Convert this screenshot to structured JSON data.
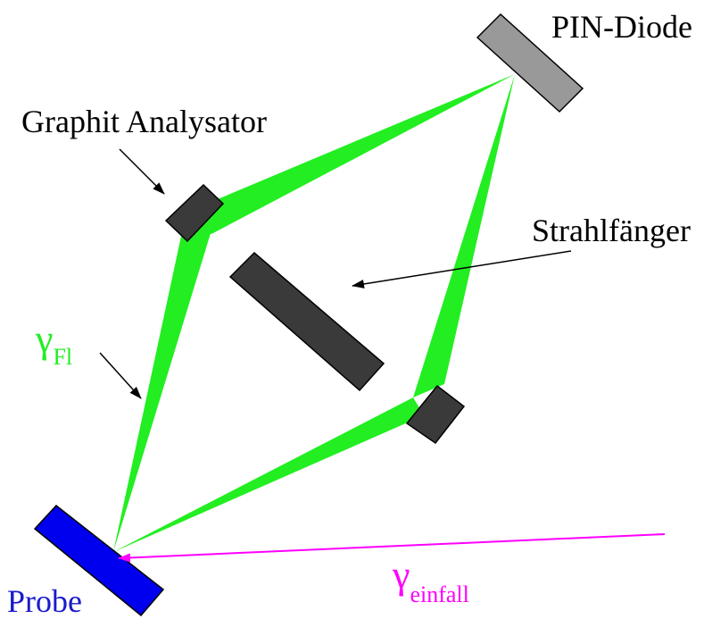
{
  "labels": {
    "pin_diode": "PIN-Diode",
    "graphit_analysator": "Graphit Analysator",
    "strahlfaenger": "Strahlfänger",
    "probe": "Probe",
    "gamma_symbol": "γ",
    "gamma_fl_sub": "Fl",
    "gamma_einfall_sub": "einfall"
  },
  "colors": {
    "beam_green": "#22ee22",
    "incident_magenta": "#ff00ff",
    "probe_blue": "#0000ee",
    "analyzer_dark": "#3a3a3a",
    "diode_gray": "#999999",
    "gamma_fl_green": "#22ee22",
    "probe_label_blue": "#1a1acc"
  }
}
